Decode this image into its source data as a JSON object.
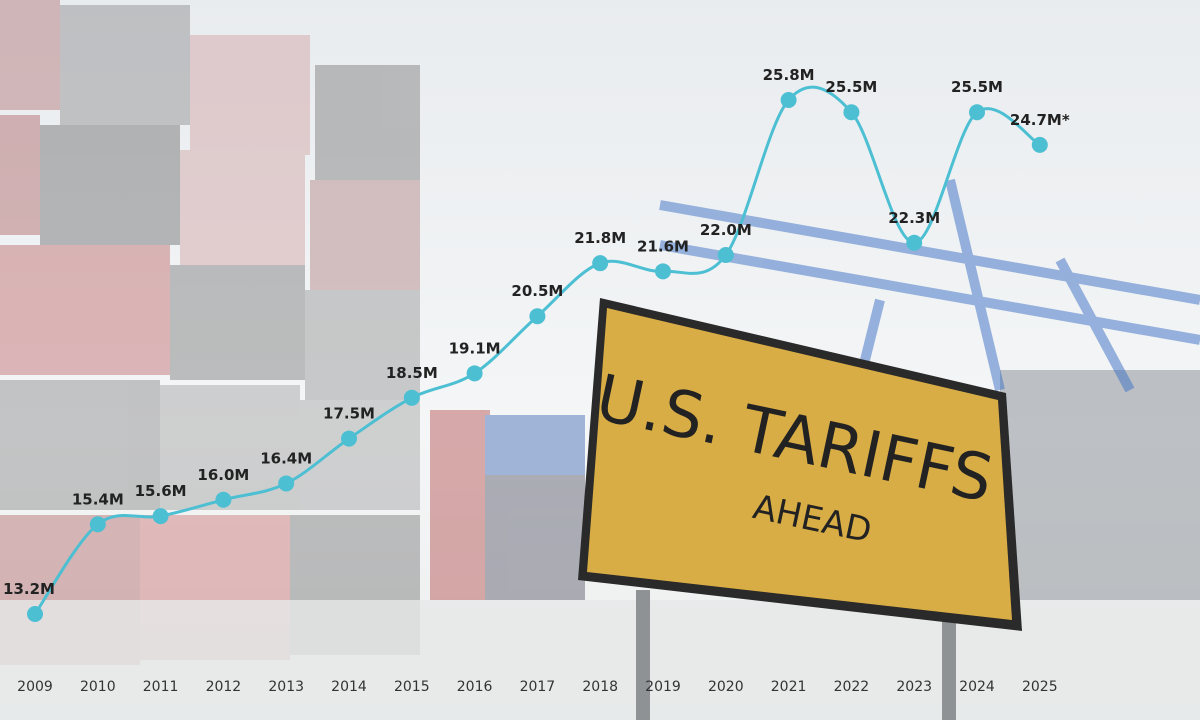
{
  "chart_data": {
    "type": "line",
    "categories": [
      "2009",
      "2010",
      "2011",
      "2012",
      "2013",
      "2014",
      "2015",
      "2016",
      "2017",
      "2018",
      "2019",
      "2020",
      "2021",
      "2022",
      "2023",
      "2024",
      "2025"
    ],
    "values": [
      13.2,
      15.4,
      15.6,
      16.0,
      16.4,
      17.5,
      18.5,
      19.1,
      20.5,
      21.8,
      21.6,
      22.0,
      25.8,
      25.5,
      22.3,
      25.5,
      24.7
    ],
    "value_labels": [
      "13.2M",
      "15.4M",
      "15.6M",
      "16.0M",
      "16.4M",
      "17.5M",
      "18.5M",
      "19.1M",
      "20.5M",
      "21.8M",
      "21.6M",
      "22.0M",
      "25.8M",
      "25.5M",
      "22.3M",
      "25.5M",
      "24.7M*"
    ],
    "color": "#4dbfd3",
    "annotations": [
      "U.S. TARIFFS",
      "AHEAD"
    ]
  }
}
